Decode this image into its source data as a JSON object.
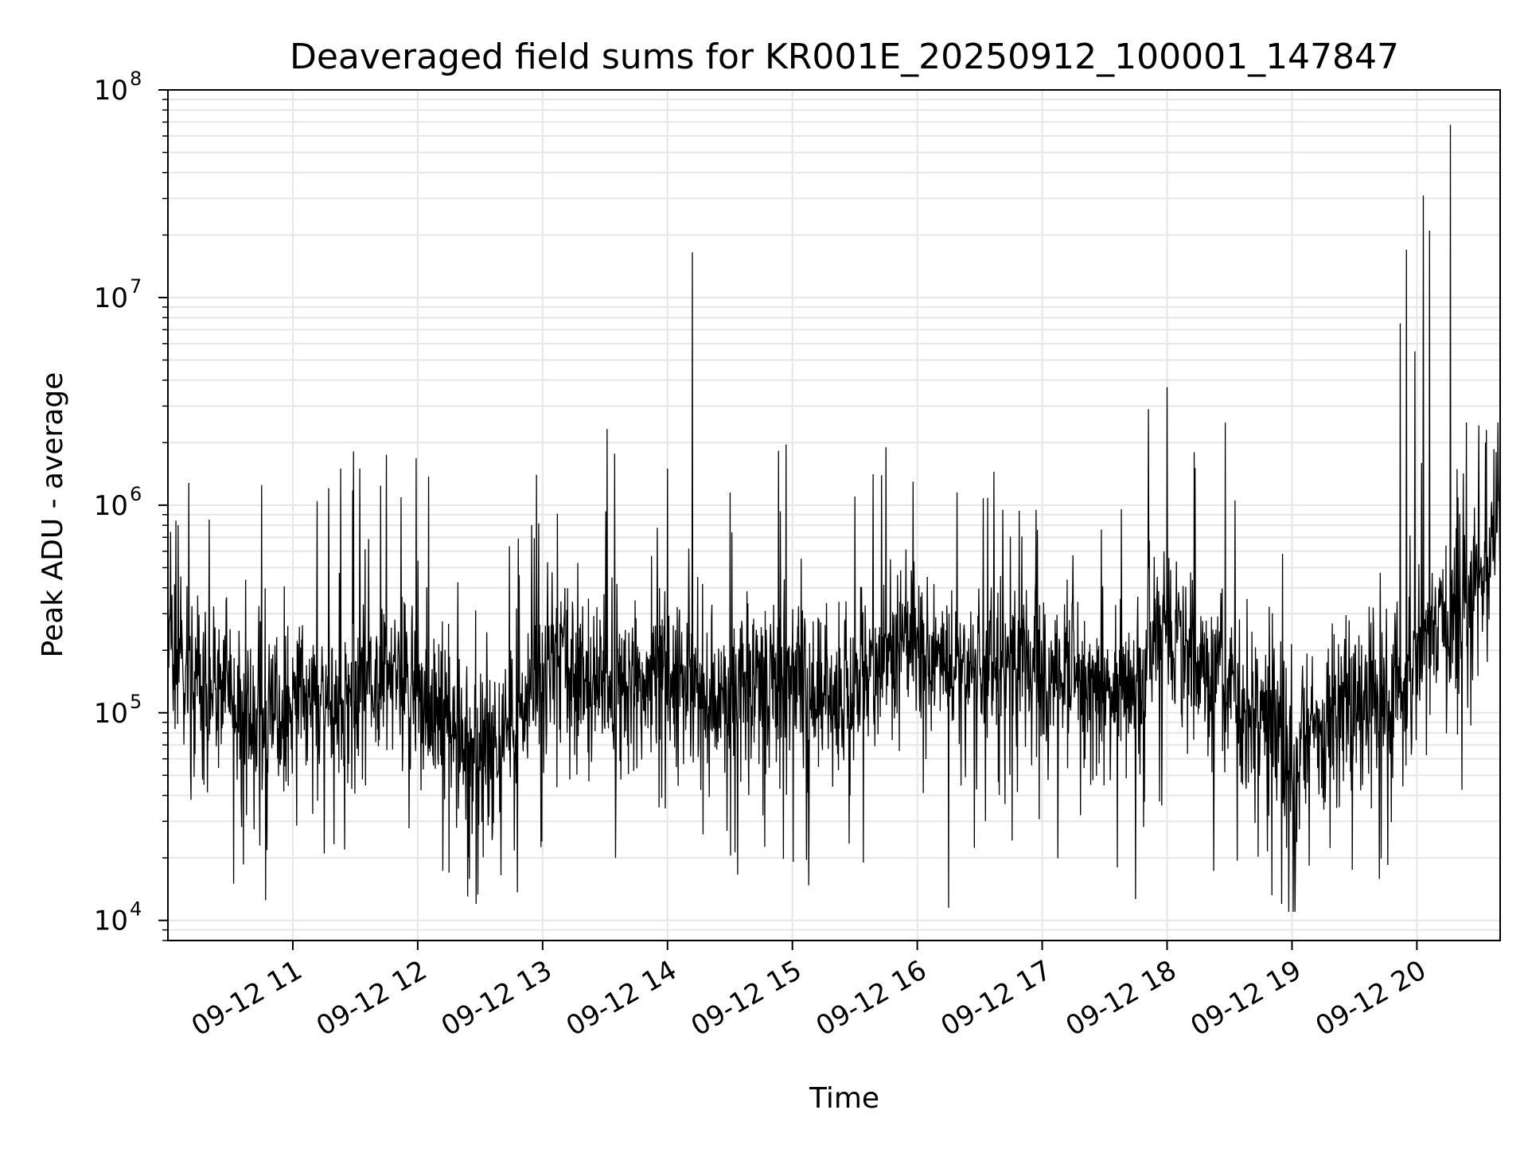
{
  "chart_data": {
    "type": "line",
    "title": "Deaveraged field sums for KR001E_20250912_100001_147847",
    "xlabel": "Time",
    "ylabel": "Peak ADU - average",
    "yscale": "log",
    "ylim": [
      8000,
      100000000
    ],
    "xlim": [
      "2025-09-12 10:00",
      "2025-09-12 20:40"
    ],
    "grid": true,
    "line_color": "#000000",
    "grid_color": "#e6e6e6",
    "x_ticks": [
      {
        "value": "2025-09-12 11:00",
        "label": "09-12 11"
      },
      {
        "value": "2025-09-12 12:00",
        "label": "09-12 12"
      },
      {
        "value": "2025-09-12 13:00",
        "label": "09-12 13"
      },
      {
        "value": "2025-09-12 14:00",
        "label": "09-12 14"
      },
      {
        "value": "2025-09-12 15:00",
        "label": "09-12 15"
      },
      {
        "value": "2025-09-12 16:00",
        "label": "09-12 16"
      },
      {
        "value": "2025-09-12 17:00",
        "label": "09-12 17"
      },
      {
        "value": "2025-09-12 18:00",
        "label": "09-12 18"
      },
      {
        "value": "2025-09-12 19:00",
        "label": "09-12 19"
      },
      {
        "value": "2025-09-12 20:00",
        "label": "09-12 20"
      }
    ],
    "y_ticks": [
      {
        "value": 10000,
        "base": "10",
        "exp": "4"
      },
      {
        "value": 100000,
        "base": "10",
        "exp": "5"
      },
      {
        "value": 1000000,
        "base": "10",
        "exp": "6"
      },
      {
        "value": 10000000,
        "base": "10",
        "exp": "7"
      },
      {
        "value": 100000000,
        "base": "10",
        "exp": "8"
      }
    ],
    "series": [
      {
        "baseline": [
          [
            "2025-09-12 10:00",
            250000
          ],
          [
            "2025-09-12 10:10",
            170000
          ],
          [
            "2025-09-12 10:25",
            120000
          ],
          [
            "2025-09-12 10:45",
            100000
          ],
          [
            "2025-09-12 11:00",
            120000
          ],
          [
            "2025-09-12 11:20",
            110000
          ],
          [
            "2025-09-12 11:45",
            160000
          ],
          [
            "2025-09-12 12:00",
            130000
          ],
          [
            "2025-09-12 12:20",
            80000
          ],
          [
            "2025-09-12 12:35",
            60000
          ],
          [
            "2025-09-12 12:55",
            120000
          ],
          [
            "2025-09-12 13:05",
            220000
          ],
          [
            "2025-09-12 13:20",
            150000
          ],
          [
            "2025-09-12 13:45",
            130000
          ],
          [
            "2025-09-12 14:00",
            160000
          ],
          [
            "2025-09-12 14:20",
            110000
          ],
          [
            "2025-09-12 14:45",
            130000
          ],
          [
            "2025-09-12 15:00",
            160000
          ],
          [
            "2025-09-12 15:20",
            110000
          ],
          [
            "2025-09-12 15:40",
            170000
          ],
          [
            "2025-09-12 15:55",
            250000
          ],
          [
            "2025-09-12 16:10",
            180000
          ],
          [
            "2025-09-12 16:30",
            170000
          ],
          [
            "2025-09-12 16:50",
            150000
          ],
          [
            "2025-09-12 17:10",
            150000
          ],
          [
            "2025-09-12 17:30",
            110000
          ],
          [
            "2025-09-12 17:45",
            150000
          ],
          [
            "2025-09-12 17:55",
            280000
          ],
          [
            "2025-09-12 18:10",
            200000
          ],
          [
            "2025-09-12 18:30",
            130000
          ],
          [
            "2025-09-12 18:50",
            80000
          ],
          [
            "2025-09-12 19:00",
            70000
          ],
          [
            "2025-09-12 19:20",
            100000
          ],
          [
            "2025-09-12 19:45",
            120000
          ],
          [
            "2025-09-12 20:00",
            180000
          ],
          [
            "2025-09-12 20:15",
            300000
          ],
          [
            "2025-09-12 20:30",
            500000
          ],
          [
            "2025-09-12 20:40",
            900000
          ]
        ],
        "spikes": [
          [
            "2025-09-12 10:01",
            300000
          ],
          [
            "2025-09-12 10:05",
            800000
          ],
          [
            "2025-09-12 10:10",
            1280000
          ],
          [
            "2025-09-12 10:45",
            1250000
          ],
          [
            "2025-09-12 10:47",
            12500
          ],
          [
            "2025-09-12 11:15",
            21000
          ],
          [
            "2025-09-12 11:23",
            1500000
          ],
          [
            "2025-09-12 11:45",
            1750000
          ],
          [
            "2025-09-12 12:15",
            17000
          ],
          [
            "2025-09-12 12:28",
            12000
          ],
          [
            "2025-09-12 12:40",
            16500
          ],
          [
            "2025-09-12 12:57",
            1400000
          ],
          [
            "2025-09-12 13:35",
            20000
          ],
          [
            "2025-09-12 14:00",
            1500000
          ],
          [
            "2025-09-12 14:12",
            16500000
          ],
          [
            "2025-09-12 14:17",
            26000
          ],
          [
            "2025-09-12 14:30",
            1150000
          ],
          [
            "2025-09-12 15:30",
            1100000
          ],
          [
            "2025-09-12 15:34",
            19000
          ],
          [
            "2025-09-12 15:45",
            1900000
          ],
          [
            "2025-09-12 16:15",
            11500
          ],
          [
            "2025-09-12 16:57",
            950000
          ],
          [
            "2025-09-12 17:36",
            18000
          ],
          [
            "2025-09-12 17:51",
            2900000
          ],
          [
            "2025-09-12 18:00",
            3700000
          ],
          [
            "2025-09-12 18:13",
            1800000
          ],
          [
            "2025-09-12 18:55",
            12000
          ],
          [
            "2025-09-12 19:46",
            18500
          ],
          [
            "2025-09-12 19:52",
            7500000
          ],
          [
            "2025-09-12 19:55",
            17000000
          ],
          [
            "2025-09-12 19:59",
            5500000
          ],
          [
            "2025-09-12 20:03",
            31000000
          ],
          [
            "2025-09-12 20:06",
            21000000
          ],
          [
            "2025-09-12 20:16",
            68000000
          ],
          [
            "2025-09-12 20:33",
            2000000
          ],
          [
            "2025-09-12 20:38",
            1800000
          ]
        ]
      }
    ]
  }
}
